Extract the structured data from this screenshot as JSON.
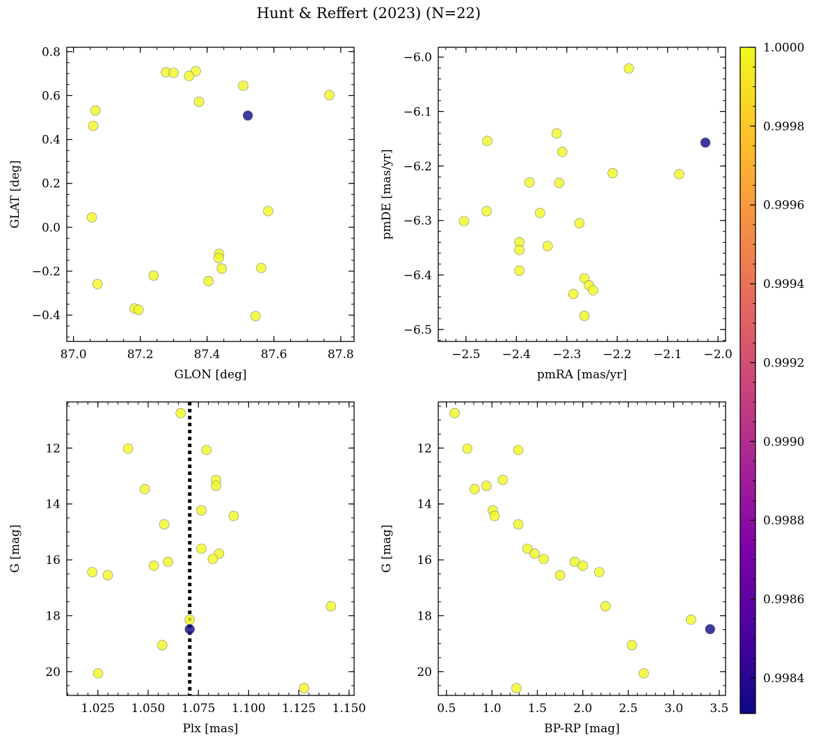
{
  "title": "Hunt & Reffert (2023) (N=22)",
  "colorbar": {
    "colormap": "plasma",
    "min": 0.99831,
    "max": 1.0,
    "ticks": [
      0.9984,
      0.9986,
      0.9988,
      0.999,
      0.9992,
      0.9994,
      0.9996,
      0.9998,
      1.0
    ],
    "tick_labels": [
      "0.9984",
      "0.9986",
      "0.9988",
      "0.9990",
      "0.9992",
      "0.9994",
      "0.9996",
      "0.9998",
      "1.0000"
    ]
  },
  "chart_data": [
    {
      "type": "scatter",
      "xlabel": "GLON [deg]",
      "ylabel": "GLAT [deg]",
      "xlim": [
        86.98,
        87.84
      ],
      "ylim": [
        -0.52,
        0.82
      ],
      "xticks": [
        87.0,
        87.2,
        87.4,
        87.6,
        87.8
      ],
      "xtick_labels": [
        "87.0",
        "87.2",
        "87.4",
        "87.6",
        "87.8"
      ],
      "yticks": [
        -0.4,
        -0.2,
        0.0,
        0.2,
        0.4,
        0.6,
        0.8
      ],
      "ytick_labels": [
        "−0.4",
        "−0.2",
        "0.0",
        "0.2",
        "0.4",
        "0.6",
        "0.8"
      ],
      "x_minor_step": 0.05,
      "y_minor_step": 0.05,
      "points": [
        {
          "x": 87.277,
          "y": 0.706,
          "c": 1.0
        },
        {
          "x": 87.3,
          "y": 0.704,
          "c": 1.0
        },
        {
          "x": 87.366,
          "y": 0.711,
          "c": 1.0
        },
        {
          "x": 87.346,
          "y": 0.689,
          "c": 1.0
        },
        {
          "x": 87.508,
          "y": 0.645,
          "c": 1.0
        },
        {
          "x": 87.766,
          "y": 0.602,
          "c": 1.0
        },
        {
          "x": 87.376,
          "y": 0.572,
          "c": 1.0
        },
        {
          "x": 87.066,
          "y": 0.532,
          "c": 1.0
        },
        {
          "x": 87.059,
          "y": 0.462,
          "c": 1.0
        },
        {
          "x": 87.055,
          "y": 0.045,
          "c": 1.0
        },
        {
          "x": 87.583,
          "y": 0.074,
          "c": 1.0
        },
        {
          "x": 87.072,
          "y": -0.259,
          "c": 1.0
        },
        {
          "x": 87.24,
          "y": -0.22,
          "c": 1.0
        },
        {
          "x": 87.436,
          "y": -0.121,
          "c": 1.0
        },
        {
          "x": 87.435,
          "y": -0.14,
          "c": 1.0
        },
        {
          "x": 87.444,
          "y": -0.188,
          "c": 1.0
        },
        {
          "x": 87.562,
          "y": -0.185,
          "c": 1.0
        },
        {
          "x": 87.404,
          "y": -0.245,
          "c": 1.0
        },
        {
          "x": 87.183,
          "y": -0.37,
          "c": 1.0
        },
        {
          "x": 87.195,
          "y": -0.376,
          "c": 1.0
        },
        {
          "x": 87.545,
          "y": -0.405,
          "c": 1.0
        },
        {
          "x": 87.522,
          "y": 0.509,
          "c": 0.99831
        }
      ]
    },
    {
      "type": "scatter",
      "xlabel": "pmRA [mas/yr]",
      "ylabel": "pmDE [mas/yr]",
      "xlim": [
        -2.555,
        -1.985
      ],
      "ylim": [
        -6.522,
        -5.982
      ],
      "xticks": [
        -2.5,
        -2.4,
        -2.3,
        -2.2,
        -2.1,
        -2.0
      ],
      "xtick_labels": [
        "−2.5",
        "−2.4",
        "−2.3",
        "−2.2",
        "−2.1",
        "−2.0"
      ],
      "yticks": [
        -6.5,
        -6.4,
        -6.3,
        -6.2,
        -6.1,
        -6.0
      ],
      "ytick_labels": [
        "−6.5",
        "−6.4",
        "−6.3",
        "−6.2",
        "−6.1",
        "−6.0"
      ],
      "x_minor_step": 0.02,
      "y_minor_step": 0.02,
      "points": [
        {
          "x": -2.177,
          "y": -6.021,
          "c": 1.0
        },
        {
          "x": -2.32,
          "y": -6.14,
          "c": 1.0
        },
        {
          "x": -2.458,
          "y": -6.154,
          "c": 1.0
        },
        {
          "x": -2.309,
          "y": -6.174,
          "c": 1.0
        },
        {
          "x": -2.209,
          "y": -6.213,
          "c": 1.0
        },
        {
          "x": -2.077,
          "y": -6.215,
          "c": 1.0
        },
        {
          "x": -2.374,
          "y": -6.23,
          "c": 1.0
        },
        {
          "x": -2.315,
          "y": -6.231,
          "c": 1.0
        },
        {
          "x": -2.459,
          "y": -6.283,
          "c": 1.0
        },
        {
          "x": -2.353,
          "y": -6.286,
          "c": 1.0
        },
        {
          "x": -2.504,
          "y": -6.301,
          "c": 1.0
        },
        {
          "x": -2.275,
          "y": -6.305,
          "c": 1.0
        },
        {
          "x": -2.394,
          "y": -6.34,
          "c": 1.0
        },
        {
          "x": -2.338,
          "y": -6.347,
          "c": 1.0
        },
        {
          "x": -2.394,
          "y": -6.354,
          "c": 1.0
        },
        {
          "x": -2.394,
          "y": -6.392,
          "c": 1.0
        },
        {
          "x": -2.265,
          "y": -6.406,
          "c": 1.0
        },
        {
          "x": -2.256,
          "y": -6.419,
          "c": 1.0
        },
        {
          "x": -2.248,
          "y": -6.428,
          "c": 1.0
        },
        {
          "x": -2.287,
          "y": -6.435,
          "c": 1.0
        },
        {
          "x": -2.265,
          "y": -6.475,
          "c": 1.0
        },
        {
          "x": -2.025,
          "y": -6.157,
          "c": 0.99831
        }
      ]
    },
    {
      "type": "scatter",
      "xlabel": "Plx [mas]",
      "ylabel": "G [mag]",
      "xlim": [
        1.0095,
        1.1525
      ],
      "ylim": [
        20.85,
        10.35
      ],
      "xticks": [
        1.025,
        1.05,
        1.075,
        1.1,
        1.125,
        1.15
      ],
      "xtick_labels": [
        "1.025",
        "1.050",
        "1.075",
        "1.100",
        "1.125",
        "1.150"
      ],
      "yticks": [
        12,
        14,
        16,
        18,
        20
      ],
      "ytick_labels": [
        "12",
        "14",
        "16",
        "18",
        "20"
      ],
      "x_minor_step": 0.005,
      "y_minor_step": 0.5,
      "vline": {
        "x": 1.0707,
        "style": "dotted"
      },
      "points": [
        {
          "x": 1.0662,
          "y": 10.75,
          "c": 1.0
        },
        {
          "x": 1.04,
          "y": 12.02,
          "c": 1.0
        },
        {
          "x": 1.079,
          "y": 12.07,
          "c": 1.0
        },
        {
          "x": 1.0838,
          "y": 13.14,
          "c": 1.0
        },
        {
          "x": 1.0838,
          "y": 13.35,
          "c": 1.0
        },
        {
          "x": 1.0483,
          "y": 13.47,
          "c": 1.0
        },
        {
          "x": 1.0765,
          "y": 14.23,
          "c": 1.0
        },
        {
          "x": 1.0926,
          "y": 14.43,
          "c": 1.0
        },
        {
          "x": 1.058,
          "y": 14.73,
          "c": 1.0
        },
        {
          "x": 1.0765,
          "y": 15.6,
          "c": 1.0
        },
        {
          "x": 1.0853,
          "y": 15.78,
          "c": 1.0
        },
        {
          "x": 1.0822,
          "y": 15.97,
          "c": 1.0
        },
        {
          "x": 1.0599,
          "y": 16.07,
          "c": 1.0
        },
        {
          "x": 1.0528,
          "y": 16.21,
          "c": 1.0
        },
        {
          "x": 1.0222,
          "y": 16.44,
          "c": 1.0
        },
        {
          "x": 1.0299,
          "y": 16.55,
          "c": 1.0
        },
        {
          "x": 1.141,
          "y": 17.66,
          "c": 1.0
        },
        {
          "x": 1.0707,
          "y": 18.14,
          "c": 1.0
        },
        {
          "x": 1.057,
          "y": 19.05,
          "c": 1.0
        },
        {
          "x": 1.0251,
          "y": 20.06,
          "c": 1.0
        },
        {
          "x": 1.1276,
          "y": 20.59,
          "c": 1.0
        },
        {
          "x": 1.0707,
          "y": 18.48,
          "c": 0.99831
        }
      ]
    },
    {
      "type": "scatter",
      "xlabel": "BP-RP [mag]",
      "ylabel": "G [mag]",
      "xlim": [
        0.41,
        3.57
      ],
      "ylim": [
        20.85,
        10.35
      ],
      "xticks": [
        0.5,
        1.0,
        1.5,
        2.0,
        2.5,
        3.0,
        3.5
      ],
      "xtick_labels": [
        "0.5",
        "1.0",
        "1.5",
        "2.0",
        "2.5",
        "3.0",
        "3.5"
      ],
      "yticks": [
        12,
        14,
        16,
        18,
        20
      ],
      "ytick_labels": [
        "12",
        "14",
        "16",
        "18",
        "20"
      ],
      "x_minor_step": 0.1,
      "y_minor_step": 0.5,
      "points": [
        {
          "x": 0.59,
          "y": 10.75,
          "c": 1.0
        },
        {
          "x": 0.73,
          "y": 12.02,
          "c": 1.0
        },
        {
          "x": 1.29,
          "y": 12.07,
          "c": 1.0
        },
        {
          "x": 1.12,
          "y": 13.14,
          "c": 1.0
        },
        {
          "x": 0.94,
          "y": 13.35,
          "c": 1.0
        },
        {
          "x": 0.81,
          "y": 13.47,
          "c": 1.0
        },
        {
          "x": 1.01,
          "y": 14.23,
          "c": 1.0
        },
        {
          "x": 1.03,
          "y": 14.43,
          "c": 1.0
        },
        {
          "x": 1.29,
          "y": 14.73,
          "c": 1.0
        },
        {
          "x": 1.39,
          "y": 15.6,
          "c": 1.0
        },
        {
          "x": 1.47,
          "y": 15.78,
          "c": 1.0
        },
        {
          "x": 1.57,
          "y": 15.97,
          "c": 1.0
        },
        {
          "x": 1.91,
          "y": 16.07,
          "c": 1.0
        },
        {
          "x": 2.0,
          "y": 16.21,
          "c": 1.0
        },
        {
          "x": 2.18,
          "y": 16.44,
          "c": 1.0
        },
        {
          "x": 1.75,
          "y": 16.55,
          "c": 1.0
        },
        {
          "x": 2.25,
          "y": 17.66,
          "c": 1.0
        },
        {
          "x": 3.19,
          "y": 18.14,
          "c": 1.0
        },
        {
          "x": 2.54,
          "y": 19.05,
          "c": 1.0
        },
        {
          "x": 2.67,
          "y": 20.06,
          "c": 1.0
        },
        {
          "x": 1.27,
          "y": 20.59,
          "c": 1.0
        },
        {
          "x": 3.4,
          "y": 18.48,
          "c": 0.99831
        }
      ]
    }
  ]
}
